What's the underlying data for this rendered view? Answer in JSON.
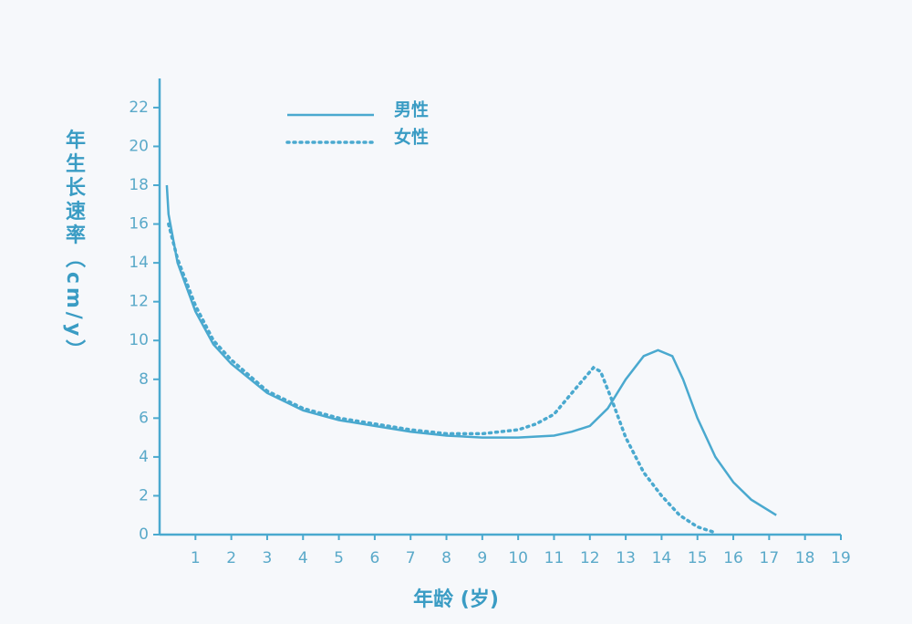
{
  "chart_data": {
    "type": "line",
    "y_label": "年生长速率（cm/y）",
    "x_label": "年龄 (岁)",
    "xlim": [
      0,
      19
    ],
    "xticks": [
      1,
      2,
      3,
      4,
      5,
      6,
      7,
      8,
      9,
      10,
      11,
      12,
      13,
      14,
      15,
      16,
      17,
      18,
      19
    ],
    "ylim": [
      0,
      23.5
    ],
    "yticks": [
      0,
      2,
      4,
      6,
      8,
      10,
      12,
      14,
      16,
      18,
      20,
      22
    ],
    "legend": "top-left",
    "series": [
      {
        "name": "男性",
        "color": "#4aa9cf",
        "style": "solid",
        "x": [
          0.2,
          0.25,
          0.5,
          1,
          1.5,
          2,
          3,
          4,
          5,
          6,
          7,
          8,
          9,
          10,
          11,
          11.5,
          12,
          12.5,
          13,
          13.5,
          13.9,
          14.3,
          14.6,
          15,
          15.5,
          16,
          16.5,
          17.2
        ],
        "values": [
          18,
          16.5,
          14,
          11.5,
          9.8,
          8.8,
          7.3,
          6.4,
          5.9,
          5.6,
          5.3,
          5.1,
          5.0,
          5.0,
          5.1,
          5.3,
          5.6,
          6.5,
          8,
          9.2,
          9.5,
          9.2,
          8,
          6,
          4,
          2.7,
          1.8,
          1.0
        ]
      },
      {
        "name": "女性",
        "color": "#4aa9cf",
        "style": "dotted",
        "x": [
          0.25,
          0.5,
          1,
          1.5,
          2,
          3,
          4,
          5,
          6,
          7,
          8,
          9,
          10,
          10.5,
          11,
          11.5,
          12.1,
          12.3,
          12.6,
          13,
          13.5,
          14,
          14.5,
          15,
          15.5
        ],
        "values": [
          16,
          14.2,
          11.8,
          10,
          9,
          7.4,
          6.5,
          6,
          5.7,
          5.4,
          5.2,
          5.2,
          5.4,
          5.7,
          6.2,
          7.3,
          8.6,
          8.4,
          7,
          5,
          3.2,
          2,
          1,
          0.4,
          0.1
        ]
      }
    ]
  }
}
